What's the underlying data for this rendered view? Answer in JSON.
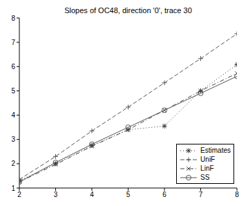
{
  "chart_data": {
    "type": "line",
    "title": "Slopes of OC48, direction '0', trace 30",
    "x": [
      2,
      3,
      4,
      5,
      6,
      7,
      8
    ],
    "xlim": [
      2,
      8
    ],
    "xticks": [
      2,
      3,
      4,
      5,
      6,
      7,
      8
    ],
    "ylim": [
      1,
      8
    ],
    "yticks": [
      1,
      2,
      3,
      4,
      5,
      6,
      7,
      8
    ],
    "legend": "lower right",
    "series": [
      {
        "name": "Estimates",
        "color": "#333333",
        "marker": "star",
        "line_style": "dotted",
        "values": [
          1.3,
          2.0,
          2.75,
          3.4,
          3.55,
          5.0,
          6.08
        ]
      },
      {
        "name": "UniF",
        "color": "#555555",
        "marker": "plus",
        "line_style": "dashed",
        "values": [
          1.35,
          2.3,
          3.35,
          4.33,
          5.33,
          6.33,
          7.35
        ]
      },
      {
        "name": "LinF",
        "color": "#444444",
        "marker": "x",
        "line_style": "dashdot",
        "values": [
          1.25,
          1.97,
          2.72,
          3.4,
          4.2,
          5.0,
          5.72
        ]
      },
      {
        "name": "SS",
        "color": "#555555",
        "marker": "circle",
        "line_style": "solid",
        "values": [
          1.25,
          2.05,
          2.8,
          3.5,
          4.2,
          4.9,
          5.6
        ]
      }
    ]
  }
}
